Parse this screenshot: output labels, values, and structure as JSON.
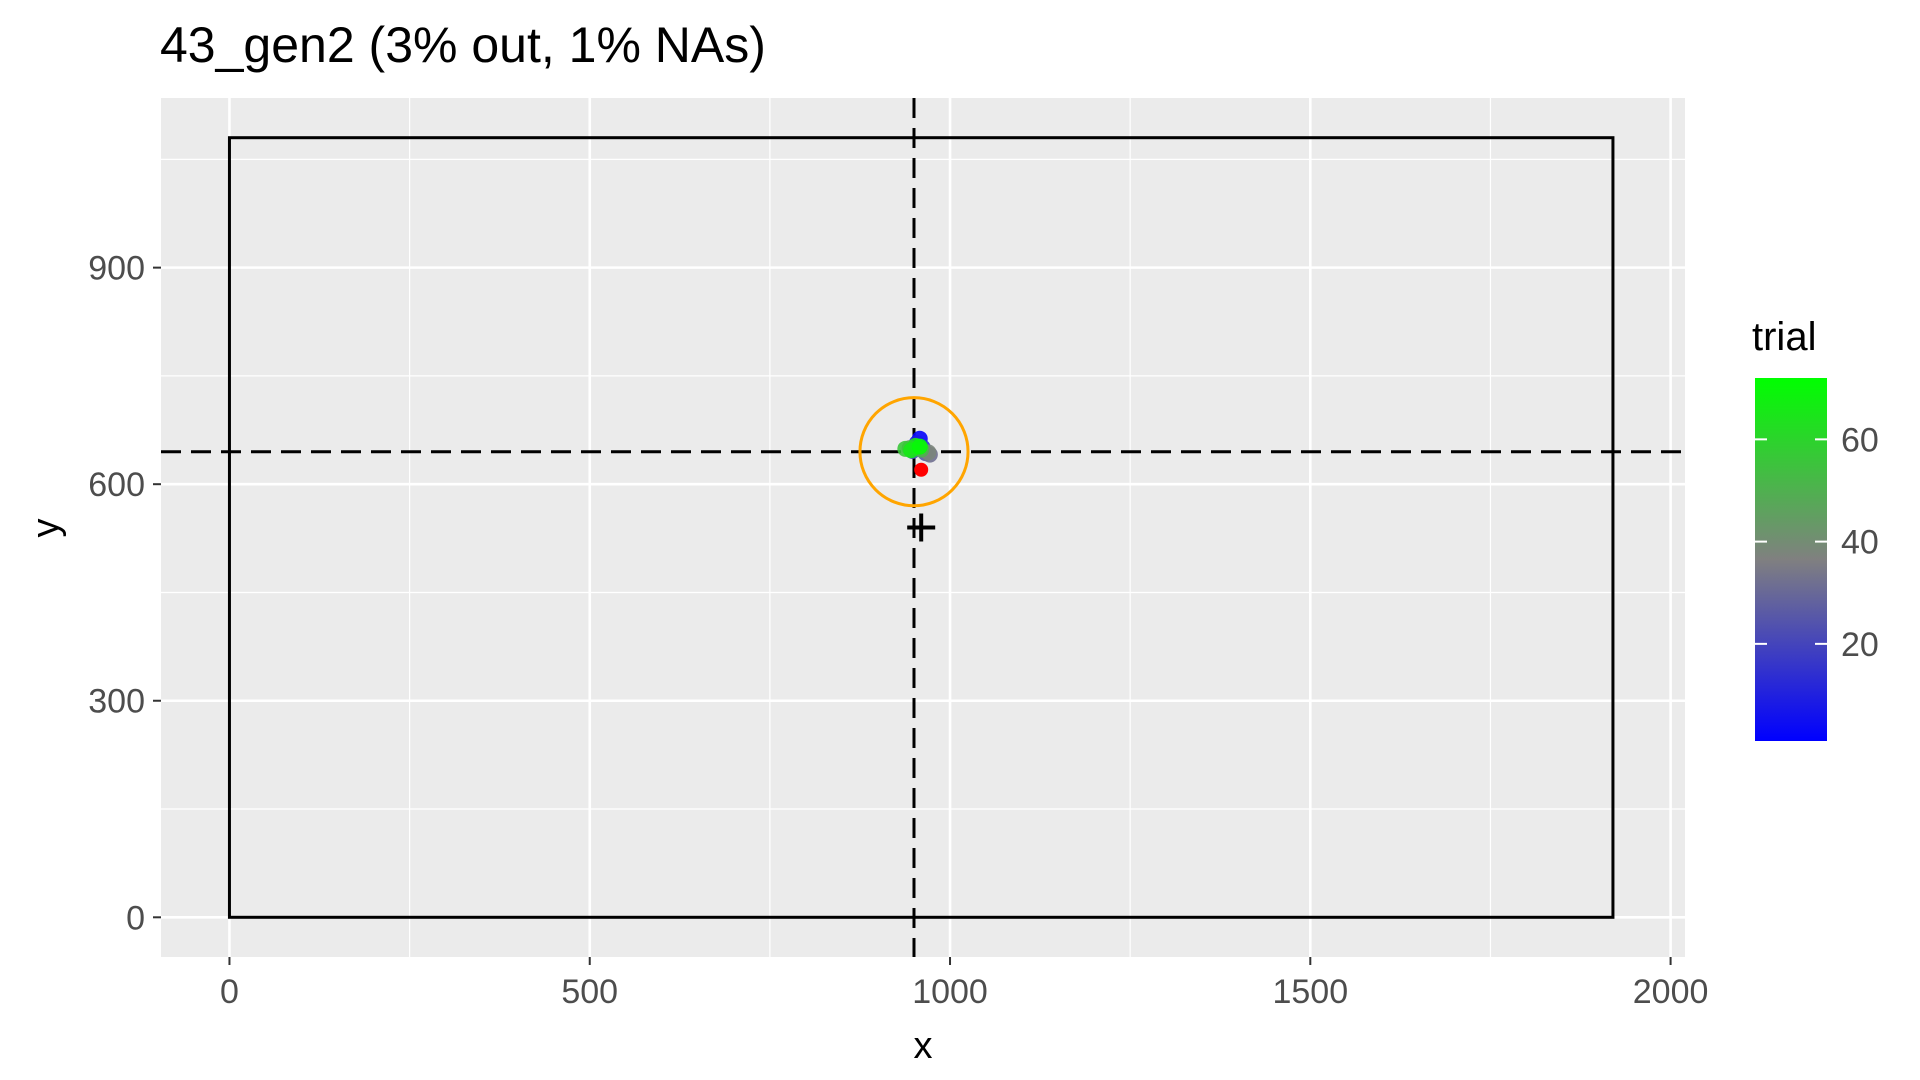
{
  "chart_data": {
    "type": "scatter",
    "title": "43_gen2 (3% out, 1% NAs)",
    "xlabel": "x",
    "ylabel": "y",
    "xlim": [
      -95,
      2020
    ],
    "ylim": [
      -55,
      1135
    ],
    "x_ticks": [
      0,
      500,
      1000,
      1500,
      2000
    ],
    "y_ticks": [
      0,
      300,
      600,
      900
    ],
    "x_tick_labels": [
      "0",
      "500",
      "1000",
      "1500",
      "2000"
    ],
    "y_tick_labels": [
      "0",
      "300",
      "600",
      "900"
    ],
    "grid": true,
    "screen_rect": {
      "x0": 0,
      "y0": 0,
      "x1": 1920,
      "y1": 1080
    },
    "crosshair": {
      "x": 950,
      "y": 645
    },
    "target_circle": {
      "x": 950,
      "y": 645,
      "radius": 75,
      "color": "#ffa500"
    },
    "fixation_cross": {
      "x": 960,
      "y": 540
    },
    "outlier_point": {
      "x": 960,
      "y": 620,
      "color": "#ff0000"
    },
    "points": [
      {
        "x": 958,
        "y": 663,
        "trial": 2
      },
      {
        "x": 954,
        "y": 657,
        "trial": 8
      },
      {
        "x": 962,
        "y": 651,
        "trial": 14
      },
      {
        "x": 948,
        "y": 646,
        "trial": 20
      },
      {
        "x": 966,
        "y": 643,
        "trial": 26
      },
      {
        "x": 972,
        "y": 641,
        "trial": 32
      },
      {
        "x": 970,
        "y": 644,
        "trial": 38
      },
      {
        "x": 944,
        "y": 650,
        "trial": 44
      },
      {
        "x": 960,
        "y": 648,
        "trial": 50
      },
      {
        "x": 938,
        "y": 649,
        "trial": 56
      },
      {
        "x": 952,
        "y": 653,
        "trial": 62
      },
      {
        "x": 946,
        "y": 647,
        "trial": 66
      },
      {
        "x": 958,
        "y": 652,
        "trial": 70
      }
    ],
    "legend": {
      "title": "trial",
      "position": "right",
      "min": 1,
      "max": 72,
      "color_low": "#0000ff",
      "color_mid": "#808080",
      "color_high": "#00ff00",
      "ticks": [
        20,
        40,
        60
      ],
      "tick_labels": [
        "20",
        "40",
        "60"
      ]
    }
  }
}
